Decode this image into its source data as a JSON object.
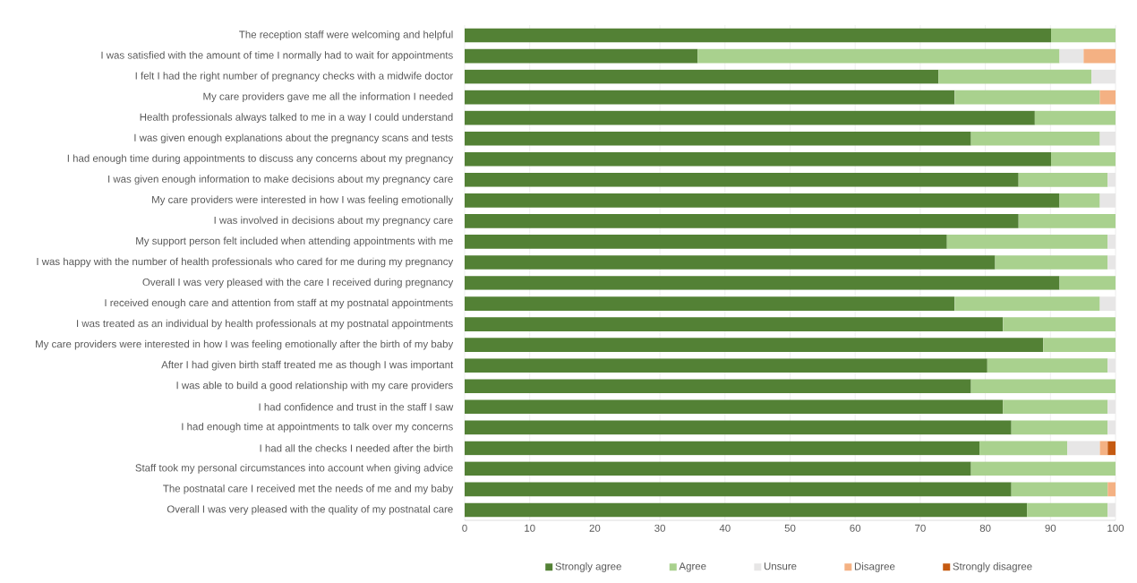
{
  "chart_data": {
    "type": "bar",
    "orientation": "horizontal",
    "stacked": true,
    "categories": [
      "The reception staff were welcoming and helpful",
      "I was satisfied with the amount of time I normally had to wait for appointments",
      "I felt I had the right number of pregnancy checks with a midwife doctor",
      "My care providers gave me all the information I needed",
      "Health professionals always talked to me in a way I could understand",
      "I was given enough explanations about the pregnancy scans and tests",
      "I had enough time during appointments to discuss any concerns about my pregnancy",
      "I was given enough information to make decisions about my pregnancy care",
      "My care providers were interested in how I was feeling emotionally",
      "I was involved in decisions about my pregnancy care",
      "My support person felt included when attending appointments with me",
      "I was happy with the number of health professionals who cared for me during my pregnancy",
      "Overall I was very pleased with the care I received during pregnancy",
      "I received enough care and attention from staff at my postnatal appointments",
      "I was treated as an individual by health professionals at my postnatal appointments",
      "My care providers were interested in how I was feeling emotionally after the birth of my baby",
      "After I had given birth staff treated me as though I was important",
      "I was able to build a good relationship with my care providers",
      "I had confidence and trust in the staff I saw",
      "I had enough time at appointments to talk over my concerns",
      "I had all the checks I needed after the birth",
      "Staff took my personal circumstances into account when giving advice",
      "The postnatal care I received met the needs of me and my baby",
      "Overall I was very pleased with the quality of my postnatal care"
    ],
    "series": [
      {
        "name": "Strongly agree",
        "color": "#538135",
        "values": [
          90.1,
          35.8,
          72.8,
          75.3,
          87.6,
          77.8,
          90.1,
          85.1,
          91.4,
          85.1,
          74.1,
          81.5,
          91.4,
          75.3,
          82.7,
          88.9,
          80.3,
          77.8,
          82.7,
          84.0,
          79.1,
          77.8,
          84.0,
          86.4
        ]
      },
      {
        "name": "Agree",
        "color": "#a9d18e",
        "values": [
          9.9,
          55.6,
          23.5,
          22.3,
          12.4,
          19.8,
          9.9,
          13.7,
          6.2,
          14.9,
          24.7,
          17.3,
          8.6,
          22.3,
          17.3,
          11.1,
          18.5,
          22.2,
          16.1,
          14.8,
          13.5,
          22.2,
          14.8,
          12.4
        ]
      },
      {
        "name": "Unsure",
        "color": "#e7e6e6",
        "values": [
          null,
          3.7,
          3.7,
          null,
          null,
          2.4,
          null,
          1.2,
          2.4,
          null,
          1.2,
          1.2,
          null,
          2.4,
          null,
          null,
          1.2,
          null,
          1.2,
          1.2,
          5.0,
          null,
          null,
          1.2
        ]
      },
      {
        "name": "Disagree",
        "color": "#f4b183",
        "values": [
          null,
          4.9,
          null,
          2.4,
          null,
          null,
          null,
          null,
          null,
          null,
          null,
          null,
          null,
          null,
          null,
          null,
          null,
          null,
          null,
          null,
          1.2,
          null,
          1.2,
          null
        ]
      },
      {
        "name": "Strongly disagree",
        "color": "#c55a11",
        "values": [
          null,
          null,
          null,
          null,
          null,
          null,
          null,
          null,
          null,
          null,
          null,
          null,
          null,
          null,
          null,
          null,
          null,
          null,
          null,
          null,
          1.2,
          null,
          null,
          null
        ]
      }
    ],
    "xlim": [
      0,
      100
    ],
    "xticks": [
      0,
      10,
      20,
      30,
      40,
      50,
      60,
      70,
      80,
      90,
      100
    ],
    "grid": "x",
    "legend": "bottom"
  }
}
